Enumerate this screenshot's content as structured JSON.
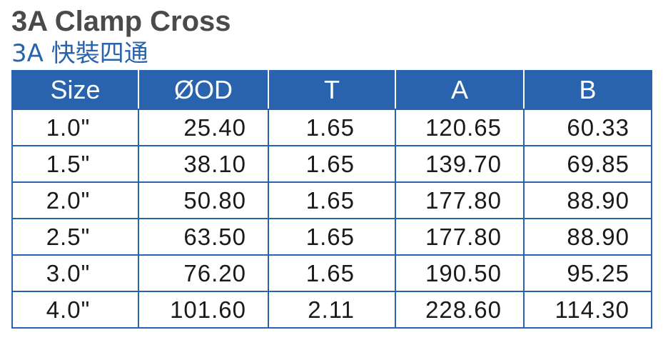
{
  "title": "3A Clamp Cross",
  "subtitle": "3A 快裝四通",
  "table": {
    "headers": [
      "Size",
      "ØOD",
      "T",
      "A",
      "B"
    ],
    "rows": [
      [
        "1.0\"",
        "25.40",
        "1.65",
        "120.65",
        "60.33"
      ],
      [
        "1.5\"",
        "38.10",
        "1.65",
        "139.70",
        "69.85"
      ],
      [
        "2.0\"",
        "50.80",
        "1.65",
        "177.80",
        "88.90"
      ],
      [
        "2.5\"",
        "63.50",
        "1.65",
        "177.80",
        "88.90"
      ],
      [
        "3.0\"",
        "76.20",
        "1.65",
        "190.50",
        "95.25"
      ],
      [
        "4.0\"",
        "101.60",
        "2.11",
        "228.60",
        "114.30"
      ]
    ]
  },
  "colors": {
    "accent": "#2a63ad",
    "title": "#4a4a4a",
    "text": "#1a1a1a"
  }
}
